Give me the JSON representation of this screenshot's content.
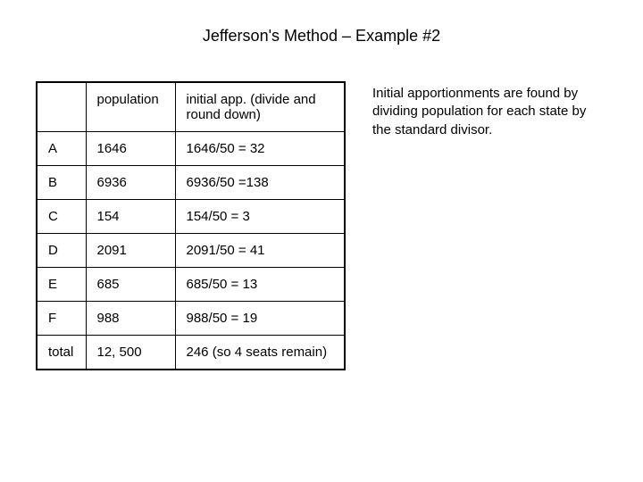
{
  "title": "Jefferson's Method – Example #2",
  "table": {
    "headers": {
      "state": "",
      "population": "population",
      "initial_app": "initial app. (divide and round down)"
    },
    "rows": [
      {
        "state": "A",
        "population": "1646",
        "initial_app": "1646/50 = 32"
      },
      {
        "state": "B",
        "population": "6936",
        "initial_app": "6936/50 =138"
      },
      {
        "state": "C",
        "population": "154",
        "initial_app": "154/50 = 3"
      },
      {
        "state": "D",
        "population": "2091",
        "initial_app": "2091/50 = 41"
      },
      {
        "state": "E",
        "population": "685",
        "initial_app": "685/50 = 13"
      },
      {
        "state": "F",
        "population": "988",
        "initial_app": "988/50 = 19"
      },
      {
        "state": "total",
        "population": "12, 500",
        "initial_app": "246 (so 4 seats remain)"
      }
    ],
    "column_widths": {
      "state": 55,
      "population": 100,
      "initial_app": 190
    },
    "border_color": "#000000",
    "background_color": "#ffffff",
    "font_size": 15
  },
  "side_text": "Initial apportionments are found by dividing population for each state by the standard divisor.",
  "styling": {
    "background_color": "#ffffff",
    "title_font_size": 18,
    "body_font_size": 15,
    "text_color": "#000000"
  }
}
